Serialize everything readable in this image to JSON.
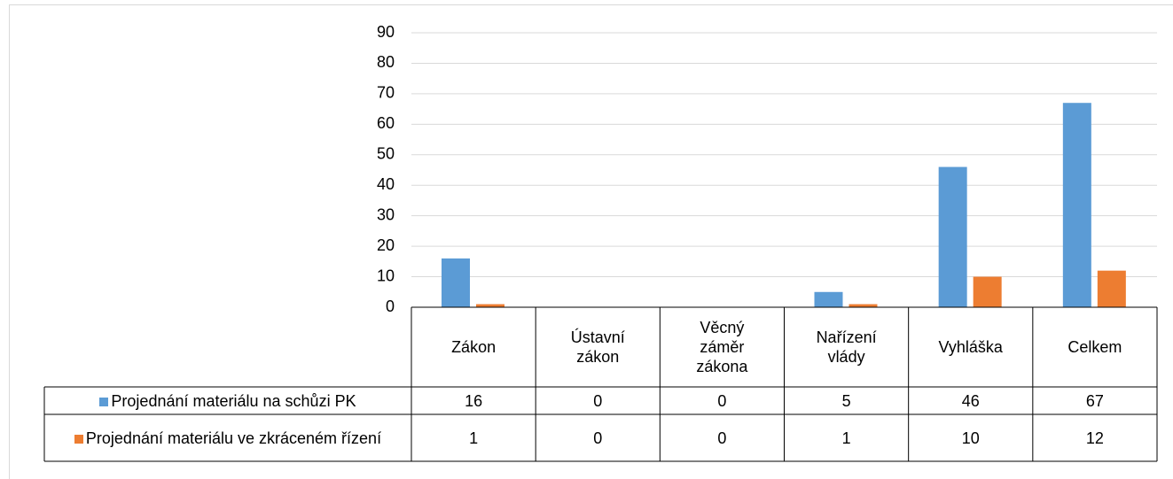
{
  "chart_data": {
    "type": "bar",
    "categories": [
      "Zákon",
      "Ústavní zákon",
      "Věcný záměr zákona",
      "Nařízení vlády",
      "Vyhláška",
      "Celkem"
    ],
    "series": [
      {
        "name": "Projednání materiálu na schůzi PK",
        "color": "#5b9bd5",
        "values": [
          16,
          0,
          0,
          5,
          46,
          67
        ]
      },
      {
        "name": "Projednání materiálu ve zkráceném řízení",
        "color": "#ed7d31",
        "values": [
          1,
          0,
          0,
          1,
          10,
          12
        ]
      }
    ],
    "ylim": [
      0,
      90
    ],
    "yticks": [
      0,
      10,
      20,
      30,
      40,
      50,
      60,
      70,
      80,
      90
    ],
    "grid": true
  }
}
